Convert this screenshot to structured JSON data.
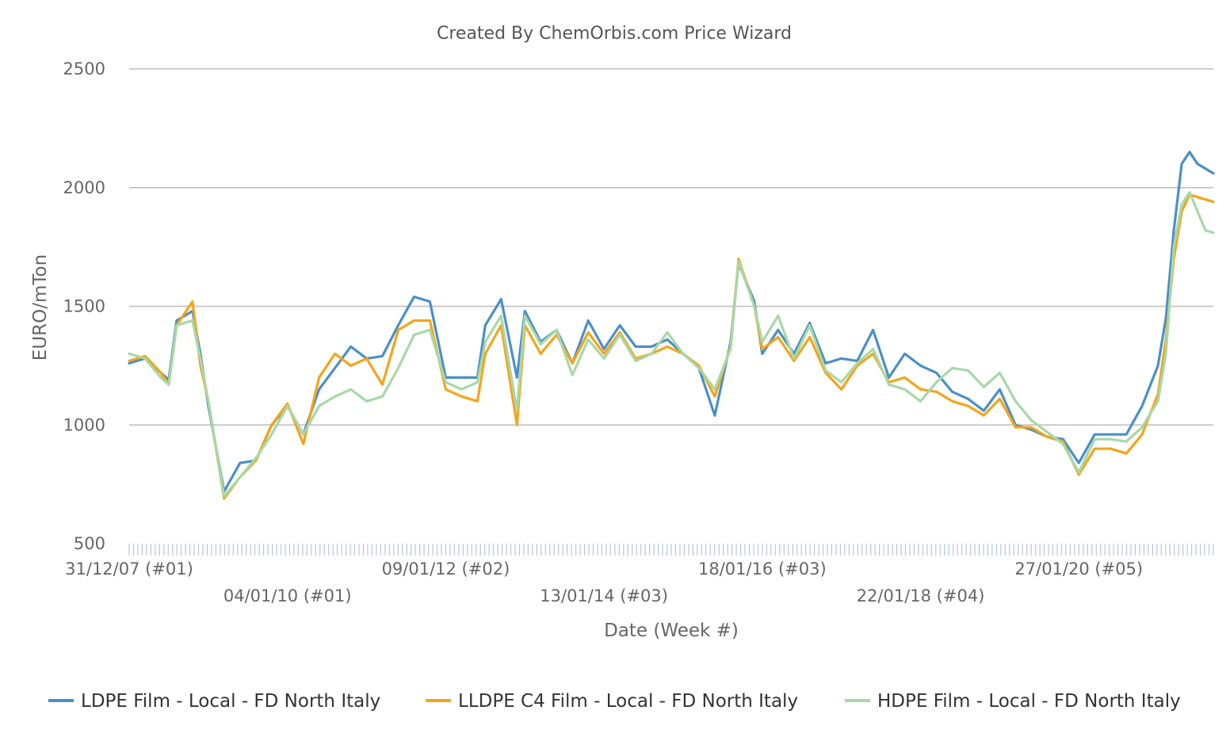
{
  "chart_data": {
    "type": "line",
    "title": "Created By ChemOrbis.com Price Wizard",
    "xlabel": "Date (Week #)",
    "ylabel": "EURO/mTon",
    "ylim": [
      500,
      2500
    ],
    "yticks": [
      500,
      1000,
      1500,
      2000,
      2500
    ],
    "grid": true,
    "legend_position": "bottom",
    "x_tick_labels": [
      {
        "label": "31/12/07 (#01)",
        "year": 2008.0
      },
      {
        "label": "04/01/10 (#01)",
        "year": 2010.0
      },
      {
        "label": "09/01/12 (#02)",
        "year": 2012.0
      },
      {
        "label": "13/01/14 (#03)",
        "year": 2014.0
      },
      {
        "label": "18/01/16 (#03)",
        "year": 2016.0
      },
      {
        "label": "22/01/18 (#04)",
        "year": 2018.0
      },
      {
        "label": "27/01/20 (#05)",
        "year": 2020.0
      }
    ],
    "x_range": [
      2008.0,
      2021.7
    ],
    "x": [
      2008.0,
      2008.2,
      2008.4,
      2008.5,
      2008.6,
      2008.8,
      2008.9,
      2009.0,
      2009.2,
      2009.4,
      2009.6,
      2009.8,
      2010.0,
      2010.2,
      2010.4,
      2010.6,
      2010.8,
      2011.0,
      2011.2,
      2011.4,
      2011.6,
      2011.8,
      2012.0,
      2012.2,
      2012.4,
      2012.5,
      2012.7,
      2012.9,
      2013.0,
      2013.2,
      2013.4,
      2013.6,
      2013.8,
      2014.0,
      2014.2,
      2014.4,
      2014.6,
      2014.8,
      2015.0,
      2015.2,
      2015.4,
      2015.6,
      2015.7,
      2015.9,
      2016.0,
      2016.2,
      2016.4,
      2016.6,
      2016.8,
      2017.0,
      2017.2,
      2017.4,
      2017.6,
      2017.8,
      2018.0,
      2018.2,
      2018.4,
      2018.6,
      2018.8,
      2019.0,
      2019.2,
      2019.4,
      2019.6,
      2019.8,
      2020.0,
      2020.2,
      2020.4,
      2020.6,
      2020.8,
      2021.0,
      2021.1,
      2021.2,
      2021.3,
      2021.4,
      2021.5,
      2021.6,
      2021.7
    ],
    "series": [
      {
        "name": "LDPE Film - Local - FD North Italy",
        "color": "#4a90c8",
        "values": [
          1260,
          1280,
          1220,
          1190,
          1440,
          1480,
          1300,
          1080,
          720,
          840,
          850,
          1000,
          1080,
          960,
          1150,
          1240,
          1330,
          1280,
          1290,
          1420,
          1540,
          1520,
          1200,
          1200,
          1200,
          1420,
          1530,
          1200,
          1480,
          1350,
          1400,
          1260,
          1440,
          1320,
          1420,
          1330,
          1330,
          1360,
          1300,
          1240,
          1040,
          1350,
          1680,
          1520,
          1300,
          1400,
          1300,
          1430,
          1260,
          1280,
          1270,
          1400,
          1200,
          1300,
          1250,
          1220,
          1140,
          1110,
          1060,
          1150,
          1000,
          980,
          950,
          940,
          840,
          960,
          960,
          960,
          1080,
          1250,
          1450,
          1820,
          2100,
          2150,
          2100,
          2080,
          2060
        ]
      },
      {
        "name": "LLDPE C4 Film - Local - FD North Italy",
        "color": "#f5a418",
        "values": [
          1270,
          1290,
          1220,
          1170,
          1420,
          1520,
          1250,
          1100,
          690,
          780,
          850,
          1000,
          1090,
          920,
          1200,
          1300,
          1250,
          1280,
          1170,
          1400,
          1440,
          1440,
          1150,
          1120,
          1100,
          1300,
          1420,
          1000,
          1420,
          1300,
          1380,
          1260,
          1390,
          1300,
          1390,
          1280,
          1300,
          1330,
          1300,
          1250,
          1120,
          1330,
          1700,
          1500,
          1320,
          1370,
          1270,
          1370,
          1220,
          1150,
          1250,
          1300,
          1180,
          1200,
          1150,
          1140,
          1100,
          1080,
          1040,
          1110,
          990,
          990,
          950,
          930,
          790,
          900,
          900,
          880,
          960,
          1130,
          1360,
          1700,
          1900,
          1970,
          1960,
          1950,
          1940
        ]
      },
      {
        "name": "HDPE Film - Local - FD North Italy",
        "color": "#a8d8a8",
        "values": [
          1300,
          1280,
          1200,
          1170,
          1420,
          1440,
          1280,
          1100,
          700,
          780,
          860,
          960,
          1080,
          960,
          1080,
          1120,
          1150,
          1100,
          1120,
          1240,
          1380,
          1400,
          1180,
          1150,
          1180,
          1350,
          1460,
          1060,
          1460,
          1340,
          1400,
          1210,
          1360,
          1280,
          1380,
          1270,
          1300,
          1390,
          1300,
          1240,
          1150,
          1320,
          1690,
          1500,
          1350,
          1460,
          1280,
          1420,
          1230,
          1180,
          1260,
          1320,
          1170,
          1150,
          1100,
          1180,
          1240,
          1230,
          1160,
          1220,
          1100,
          1020,
          970,
          920,
          800,
          940,
          940,
          930,
          990,
          1100,
          1300,
          1750,
          1930,
          1980,
          1900,
          1820,
          1810
        ]
      }
    ]
  }
}
